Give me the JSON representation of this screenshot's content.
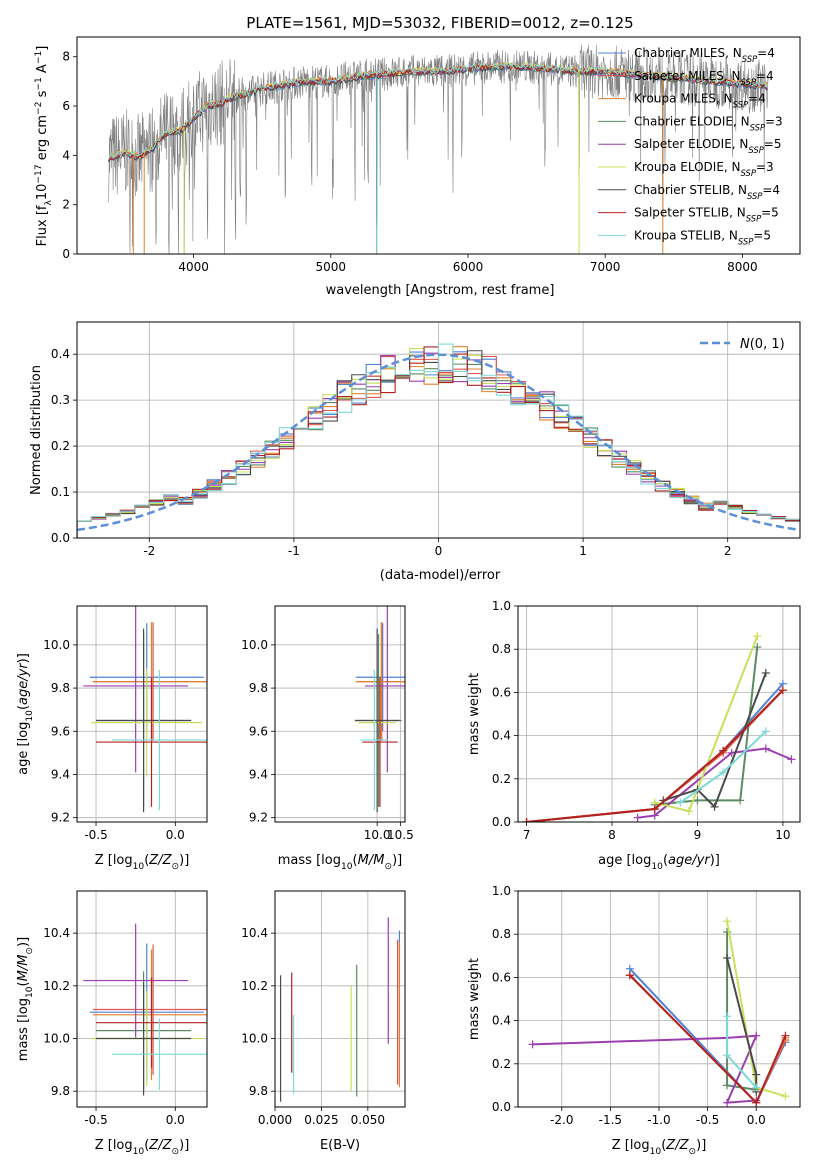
{
  "figure": {
    "title": "PLATE=1561, MJD=53032, FIBERID=0012, z=0.125"
  },
  "models": [
    {
      "name": "Chabrier MILES, N_SSP=4",
      "color": "#4f83d6"
    },
    {
      "name": "Salpeter MILES, N_SSP=4",
      "color": "#e0574f"
    },
    {
      "name": "Kroupa MILES, N_SSP=4",
      "color": "#e0812e"
    },
    {
      "name": "Chabrier ELODIE, N_SSP=3",
      "color": "#5c8a63"
    },
    {
      "name": "Salpeter ELODIE, N_SSP=5",
      "color": "#9b3fb0"
    },
    {
      "name": "Kroupa ELODIE, N_SSP=3",
      "color": "#c9e05a"
    },
    {
      "name": "Chabrier STELIB, N_SSP=4",
      "color": "#4a4a4a"
    },
    {
      "name": "Salpeter STELIB, N_SSP=5",
      "color": "#b22222"
    },
    {
      "name": "Kroupa STELIB, N_SSP=5",
      "color": "#7fd8d8"
    }
  ],
  "chart_data": [
    {
      "id": "spectrum",
      "type": "line",
      "title": "PLATE=1561, MJD=53032, FIBERID=0012, z=0.125",
      "xlabel": "wavelength [Angstrom, rest frame]",
      "ylabel": "Flux [f_λ 10^-17 erg cm^-2 s^-1 A^-1]",
      "xlim": [
        3150,
        8420
      ],
      "ylim": [
        0,
        8.8
      ],
      "xticks": [
        4000,
        5000,
        6000,
        7000,
        8000
      ],
      "yticks": [
        0,
        2,
        4,
        6,
        8
      ],
      "grid": false,
      "legend": "top-right",
      "data_color": "#808080",
      "continuum": {
        "x": [
          3380,
          3500,
          3600,
          3700,
          3800,
          3900,
          4000,
          4100,
          4200,
          4300,
          4400,
          4500,
          4600,
          4800,
          5000,
          5200,
          5400,
          5600,
          5800,
          6000,
          6200,
          6400,
          6600,
          6800,
          7000,
          7200,
          7400,
          7600,
          7800,
          8000,
          8200
        ],
        "y": [
          3.9,
          4.1,
          3.9,
          4.3,
          4.9,
          5.0,
          5.5,
          6.0,
          6.1,
          6.4,
          6.5,
          6.7,
          6.8,
          7.0,
          7.0,
          7.2,
          7.3,
          7.4,
          7.4,
          7.5,
          7.6,
          7.6,
          7.5,
          7.4,
          7.4,
          7.3,
          7.2,
          7.1,
          7.0,
          6.9,
          6.8
        ]
      },
      "absorption_lines": [
        3727,
        3820,
        3889,
        3934,
        3970,
        4102,
        4227,
        4304,
        4340,
        4384,
        4668,
        4861,
        5015,
        5175,
        5270,
        5335,
        5890,
        6563,
        6810,
        7420
      ]
    },
    {
      "id": "residuals",
      "type": "bar",
      "xlabel": "(data-model)/error",
      "ylabel": "Normed distribution",
      "xlim": [
        -2.5,
        2.5
      ],
      "ylim": [
        0,
        0.47
      ],
      "xticks": [
        -2,
        -1,
        0,
        1,
        2
      ],
      "yticks": [
        0.0,
        0.1,
        0.2,
        0.3,
        0.4
      ],
      "grid": true,
      "legend": "top-right",
      "legend_label": "N(0,1)",
      "bin_width": 0.1,
      "bin_start": -2.5
    },
    {
      "id": "age-vs-Z",
      "type": "scatter",
      "xlabel": "Z [log10(Z/Z_sun)]",
      "ylabel": "age  [log10(age/yr)]",
      "xlim": [
        -0.62,
        0.2
      ],
      "ylim": [
        9.18,
        10.18
      ],
      "xticks": [
        -0.5,
        0.0
      ],
      "yticks": [
        9.2,
        9.4,
        9.6,
        9.8,
        10.0
      ],
      "grid": true
    },
    {
      "id": "age-vs-mass",
      "type": "scatter",
      "xlabel": "mass [log10(M/M_sun)]",
      "xlim": [
        7.8,
        10.6
      ],
      "ylim": [
        9.18,
        10.18
      ],
      "xticks": [
        10.0,
        10.5
      ],
      "yticks": [
        9.2,
        9.4,
        9.6,
        9.8,
        10.0
      ],
      "grid": true
    },
    {
      "id": "weight-vs-age",
      "type": "line",
      "xlabel": "age  [log10(age/yr)]",
      "ylabel": "mass weight",
      "xlim": [
        6.9,
        10.2
      ],
      "ylim": [
        0,
        1.0
      ],
      "xticks": [
        7,
        8,
        9,
        10
      ],
      "yticks": [
        0.0,
        0.2,
        0.4,
        0.6,
        0.8,
        1.0
      ],
      "grid": true
    },
    {
      "id": "mass-vs-Z",
      "type": "scatter",
      "xlabel": "Z [log10(Z/Z_sun)]",
      "ylabel": "mass [log10(M/M_sun)]",
      "xlim": [
        -0.62,
        0.2
      ],
      "ylim": [
        9.74,
        10.56
      ],
      "xticks": [
        -0.5,
        0.0
      ],
      "yticks": [
        9.8,
        10.0,
        10.2,
        10.4
      ],
      "grid": true
    },
    {
      "id": "mass-vs-EBV",
      "type": "scatter",
      "xlabel": "E(B-V)",
      "xlim": [
        0.0,
        0.07
      ],
      "ylim": [
        9.74,
        10.56
      ],
      "xticks": [
        0.0,
        0.025,
        0.05
      ],
      "yticks": [
        9.8,
        10.0,
        10.2,
        10.4
      ],
      "grid": true
    },
    {
      "id": "weight-vs-Z",
      "type": "line",
      "xlabel": "Z [log10(Z/Z_sun)]",
      "ylabel": "mass weight",
      "xlim": [
        -2.45,
        0.45
      ],
      "ylim": [
        0,
        1.0
      ],
      "xticks": [
        -2.0,
        -1.5,
        -1.0,
        -0.5,
        0.0
      ],
      "yticks": [
        0.0,
        0.2,
        0.4,
        0.6,
        0.8,
        1.0
      ],
      "grid": true
    }
  ],
  "fits": [
    {
      "age": [
        9.85,
        0.5
      ],
      "Z": [
        -0.18,
        0.36
      ],
      "mass": [
        10.12,
        0.58
      ],
      "massErr": [
        10.1,
        0.09
      ],
      "ebv": [
        0.067,
        0.09
      ],
      "w_age": [
        [
          7.0,
          0.0
        ],
        [
          8.5,
          0.06
        ],
        [
          9.3,
          0.33
        ],
        [
          10.0,
          0.64
        ]
      ],
      "w_z": [
        [
          -1.3,
          0.64
        ],
        [
          0.0,
          0.02
        ],
        [
          0.3,
          0.3
        ]
      ]
    },
    {
      "age": [
        9.83,
        0.55
      ],
      "Z": [
        -0.14,
        0.38
      ],
      "mass": [
        10.1,
        0.55
      ],
      "massErr": [
        10.11,
        0.09
      ],
      "ebv": [
        0.066,
        0.09
      ],
      "w_age": [
        [
          7.0,
          0.0
        ],
        [
          8.5,
          0.06
        ],
        [
          9.3,
          0.32
        ],
        [
          10.0,
          0.61
        ]
      ],
      "w_z": [
        [
          -1.3,
          0.61
        ],
        [
          0.0,
          0.02
        ],
        [
          0.3,
          0.31
        ]
      ]
    },
    {
      "age": [
        9.83,
        0.55
      ],
      "Z": [
        -0.15,
        0.37
      ],
      "mass": [
        10.09,
        0.55
      ],
      "massErr": [
        10.09,
        0.09
      ],
      "ebv": [
        0.067,
        0.09
      ],
      "w_age": [
        [
          7.0,
          0.0
        ],
        [
          8.5,
          0.06
        ],
        [
          9.3,
          0.33
        ],
        [
          10.0,
          0.61
        ]
      ],
      "w_z": [
        [
          -1.3,
          0.61
        ],
        [
          0.0,
          0.02
        ],
        [
          0.3,
          0.32
        ]
      ]
    },
    {
      "age": [
        9.65,
        0.8
      ],
      "Z": [
        -0.2,
        0.3
      ],
      "mass": [
        10.03,
        0.5
      ],
      "massErr": [
        10.03,
        0.09
      ],
      "ebv": [
        0.044,
        0.05
      ],
      "w_age": [
        [
          8.5,
          0.08
        ],
        [
          9.0,
          0.1
        ],
        [
          9.5,
          0.1
        ],
        [
          9.7,
          0.81
        ]
      ],
      "w_z": [
        [
          -0.3,
          0.81
        ],
        [
          -0.3,
          0.1
        ],
        [
          0.0,
          0.08
        ]
      ]
    },
    {
      "age": [
        9.81,
        0.8
      ],
      "Z": [
        -0.25,
        0.33
      ],
      "mass": [
        10.22,
        0.48
      ],
      "massErr": [
        10.22,
        0.09
      ],
      "ebv": [
        0.061,
        0.08
      ],
      "w_age": [
        [
          8.3,
          0.02
        ],
        [
          8.5,
          0.03
        ],
        [
          9.4,
          0.32
        ],
        [
          9.8,
          0.34
        ],
        [
          10.1,
          0.29
        ]
      ],
      "w_z": [
        [
          -2.3,
          0.29
        ],
        [
          -0.3,
          0.32
        ],
        [
          0.0,
          0.33
        ],
        [
          -0.3,
          0.02
        ],
        [
          0.0,
          0.03
        ]
      ]
    },
    {
      "age": [
        9.64,
        0.5
      ],
      "Z": [
        -0.18,
        0.35
      ],
      "mass": [
        10.0,
        0.4
      ],
      "massErr": [
        10.0,
        0.09
      ],
      "ebv": [
        0.041,
        0.07
      ],
      "w_age": [
        [
          8.5,
          0.09
        ],
        [
          8.9,
          0.05
        ],
        [
          9.7,
          0.86
        ]
      ],
      "w_z": [
        [
          -0.3,
          0.86
        ],
        [
          0.0,
          0.09
        ],
        [
          0.3,
          0.05
        ]
      ]
    },
    {
      "age": [
        9.65,
        0.85
      ],
      "Z": [
        -0.2,
        0.3
      ],
      "mass": [
        10.0,
        0.48
      ],
      "massErr": [
        10.0,
        0.09
      ],
      "ebv": [
        0.003,
        0.08
      ],
      "w_age": [
        [
          8.6,
          0.1
        ],
        [
          9.0,
          0.15
        ],
        [
          9.2,
          0.07
        ],
        [
          9.8,
          0.69
        ]
      ],
      "w_z": [
        [
          -0.3,
          0.69
        ],
        [
          0.0,
          0.15
        ],
        [
          0.0,
          0.07
        ]
      ]
    },
    {
      "age": [
        9.55,
        0.6
      ],
      "Z": [
        -0.15,
        0.35
      ],
      "mass": [
        10.06,
        0.38
      ],
      "massErr": [
        10.06,
        0.09
      ],
      "ebv": [
        0.009,
        0.08
      ],
      "w_age": [
        [
          7.0,
          0.0
        ],
        [
          8.5,
          0.06
        ],
        [
          9.3,
          0.33
        ],
        [
          10.0,
          0.61
        ]
      ],
      "w_z": [
        [
          -1.3,
          0.61
        ],
        [
          0.0,
          0.02
        ],
        [
          0.3,
          0.33
        ]
      ]
    },
    {
      "age": [
        9.56,
        0.65
      ],
      "Z": [
        -0.1,
        0.3
      ],
      "mass": [
        9.94,
        0.3
      ],
      "massErr": [
        9.94,
        0.09
      ],
      "ebv": [
        0.01,
        0.08
      ],
      "w_age": [
        [
          8.8,
          0.09
        ],
        [
          9.3,
          0.23
        ],
        [
          9.8,
          0.42
        ]
      ],
      "w_z": [
        [
          -0.3,
          0.42
        ],
        [
          -0.3,
          0.24
        ],
        [
          0.0,
          0.09
        ]
      ]
    }
  ]
}
